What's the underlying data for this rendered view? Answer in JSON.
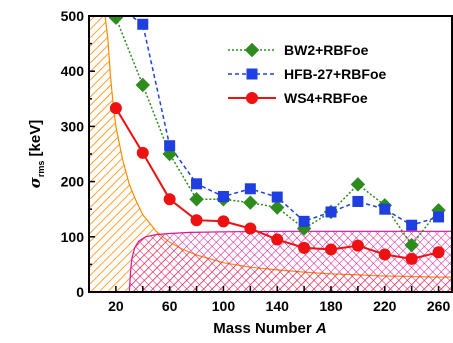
{
  "chart_data": {
    "type": "line",
    "xlabel": "Mass Number A",
    "ylabel": "σrms [keV]",
    "xlim": [
      0,
      270
    ],
    "ylim": [
      0,
      500
    ],
    "x_ticks": [
      20,
      60,
      100,
      140,
      180,
      220,
      260
    ],
    "y_ticks": [
      0,
      100,
      200,
      300,
      400,
      500
    ],
    "legend_position": "top-right",
    "series": [
      {
        "name": "BW2+RBFoe",
        "color": "#2e8b1e",
        "marker": "diamond",
        "line": "dotted",
        "x": [
          20,
          40,
          60,
          80,
          100,
          120,
          140,
          160,
          180,
          200,
          220,
          240,
          260
        ],
        "values": [
          497,
          375,
          250,
          168,
          168,
          162,
          153,
          115,
          145,
          195,
          157,
          85,
          148
        ]
      },
      {
        "name": "HFB-27+RBFoe",
        "color": "#1f3fe0",
        "marker": "square",
        "line": "dashed",
        "x": [
          20,
          40,
          60,
          80,
          100,
          120,
          140,
          160,
          180,
          200,
          220,
          240,
          260
        ],
        "values": [
          520,
          485,
          265,
          196,
          173,
          187,
          172,
          128,
          145,
          164,
          150,
          121,
          136
        ]
      },
      {
        "name": "WS4+RBFoe",
        "color": "#ee1111",
        "marker": "circle",
        "line": "solid",
        "x": [
          20,
          40,
          60,
          80,
          100,
          120,
          140,
          160,
          180,
          200,
          220,
          240,
          260
        ],
        "values": [
          333,
          252,
          168,
          130,
          128,
          115,
          95,
          80,
          77,
          84,
          68,
          60,
          72
        ]
      }
    ],
    "shaded_regions": [
      {
        "color": "#ff8c00",
        "pattern": "hatch",
        "curve_x": [
          12,
          14,
          16,
          18,
          20,
          25,
          30,
          35,
          40,
          50,
          60,
          70,
          80,
          100,
          120,
          140,
          160,
          180,
          200,
          220,
          240,
          260,
          270
        ],
        "curve_y": [
          500,
          460,
          390,
          340,
          300,
          240,
          195,
          165,
          140,
          110,
          90,
          77,
          67,
          53,
          45,
          40,
          36,
          33,
          31,
          29,
          28,
          27,
          27
        ]
      },
      {
        "color": "#e0109a",
        "pattern": "crosshatch",
        "curve_x": [
          30,
          31,
          32,
          34,
          37,
          42,
          50,
          60,
          75,
          100,
          150,
          270
        ],
        "curve_y": [
          0,
          40,
          62,
          80,
          92,
          100,
          104,
          106,
          108,
          109,
          110,
          110
        ]
      }
    ]
  }
}
